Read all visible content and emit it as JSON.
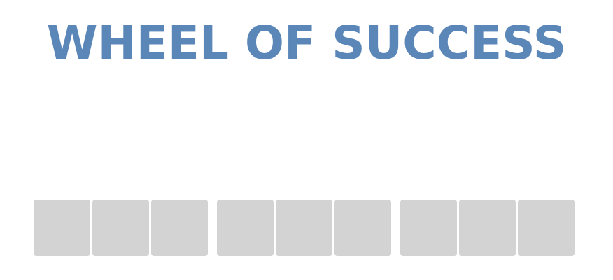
{
  "title": "WHEEL OF SUCCESS",
  "colors": {
    "title": "#5b86b8",
    "tile_background": "#d3d3d3",
    "page_background": "#ffffff"
  },
  "board": {
    "words": [
      {
        "tiles": [
          {
            "letter": ""
          },
          {
            "letter": ""
          },
          {
            "letter": ""
          }
        ]
      },
      {
        "tiles": [
          {
            "letter": ""
          },
          {
            "letter": ""
          },
          {
            "letter": ""
          }
        ]
      },
      {
        "tiles": [
          {
            "letter": ""
          },
          {
            "letter": ""
          },
          {
            "letter": ""
          }
        ]
      }
    ]
  }
}
